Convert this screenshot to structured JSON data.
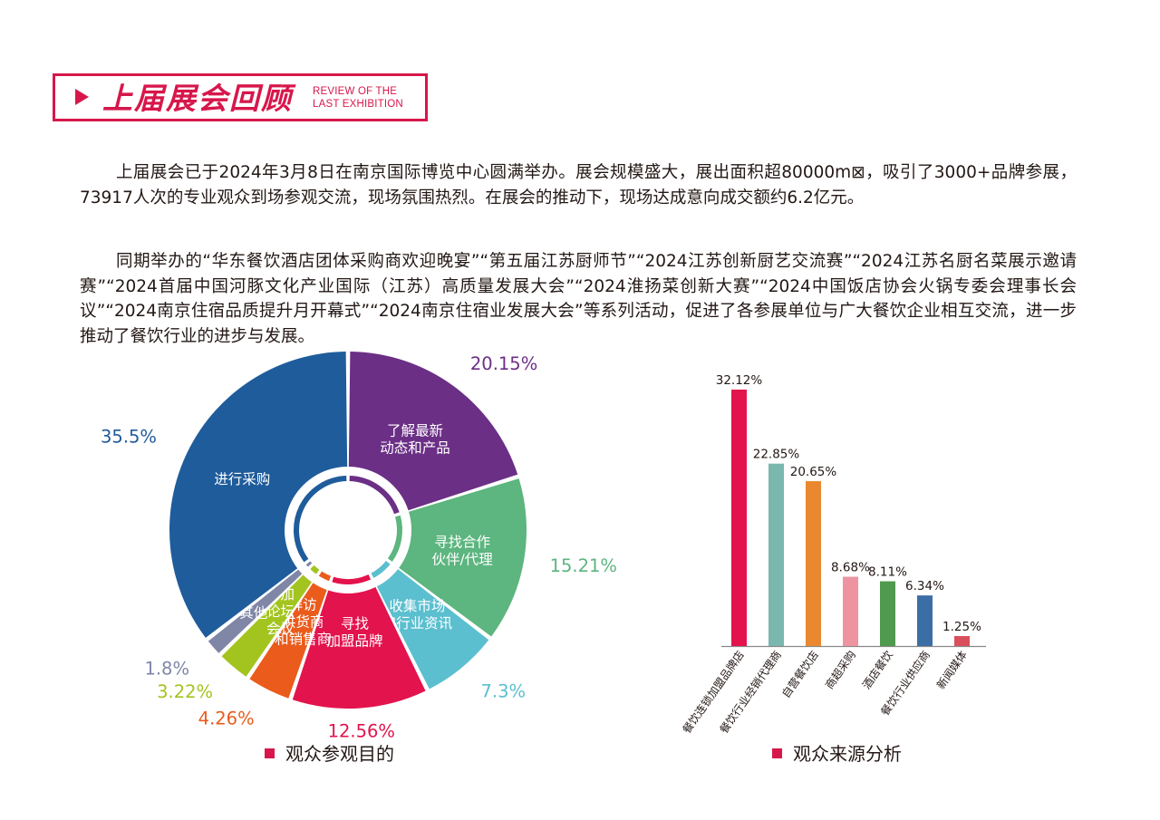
{
  "header": {
    "title": "上届展会回顾",
    "en_line1": "REVIEW OF THE",
    "en_line2": "LAST EXHIBITION"
  },
  "paragraphs": [
    "上届展会已于2024年3月8日在南京国际博览中心圆满举办。展会规模盛大，展出面积超80000m⊠，吸引了3000+品牌参展，73917人次的专业观众到场参观交流，现场氛围热烈。在展会的推动下，现场达成意向成交额约6.2亿元。",
    "同期举办的“华东餐饮酒店团体采购商欢迎晚宴”“第五届江苏厨师节”“2024江苏创新厨艺交流赛”“2024江苏名厨名菜展示邀请赛”“2024首届中国河豚文化产业国际（江苏）高质量发展大会”“2024淮扬菜创新大赛”“2024中国饭店协会火锅专委会理事长会议”“2024南京住宿品质提升月开幕式”“2024南京住宿业发展大会”等系列活动，促进了各参展单位与广大餐饮企业相互交流，进一步推动了餐饮行业的进步与发展。"
  ],
  "chart_data": [
    {
      "type": "pie",
      "title": "观众参观目的",
      "slices": [
        {
          "label_lines": [
            "了解最新",
            "动态和产品"
          ],
          "value": 20.15,
          "value_label": "20.15%",
          "color": "#6b2f86"
        },
        {
          "label_lines": [
            "寻找合作",
            "伙伴/代理"
          ],
          "value": 15.21,
          "value_label": "15.21%",
          "color": "#5db57f"
        },
        {
          "label_lines": [
            "收集市场",
            "和行业资讯"
          ],
          "value": 7.3,
          "value_label": "7.3%",
          "color": "#5bbfcf"
        },
        {
          "label_lines": [
            "寻找",
            "加盟品牌"
          ],
          "value": 12.56,
          "value_label": "12.56%",
          "color": "#e3134d"
        },
        {
          "label_lines": [
            "拜访",
            "供货商",
            "和销售商"
          ],
          "value": 4.26,
          "value_label": "4.26%",
          "color": "#ea5b1c"
        },
        {
          "label_lines": [
            "参加",
            "论坛",
            "会议"
          ],
          "value": 3.22,
          "value_label": "3.22%",
          "color": "#a3c41f"
        },
        {
          "label_lines": [
            "其他"
          ],
          "value": 1.8,
          "value_label": "1.8%",
          "color": "#7f86a6"
        },
        {
          "label_lines": [
            "进行采购"
          ],
          "value": 35.5,
          "value_label": "35.5%",
          "color": "#1f5c9b"
        }
      ]
    },
    {
      "type": "bar",
      "title": "观众来源分析",
      "categories": [
        "餐饮连锁加盟品牌店",
        "餐饮行业经销代理商",
        "自营餐饮店",
        "商超采购",
        "酒店餐饮",
        "餐饮行业供应商",
        "新闻媒体"
      ],
      "values": [
        32.12,
        22.85,
        20.65,
        8.68,
        8.11,
        6.34,
        1.25
      ],
      "value_labels": [
        "32.12%",
        "22.85%",
        "20.65%",
        "8.68%",
        "8.11%",
        "6.34%",
        "1.25%"
      ],
      "colors": [
        "#e3134d",
        "#7ab7ae",
        "#e9882f",
        "#ee94a1",
        "#4f9a4e",
        "#3b6ea5",
        "#d9505c"
      ],
      "ylim": [
        0,
        32.12
      ]
    }
  ]
}
